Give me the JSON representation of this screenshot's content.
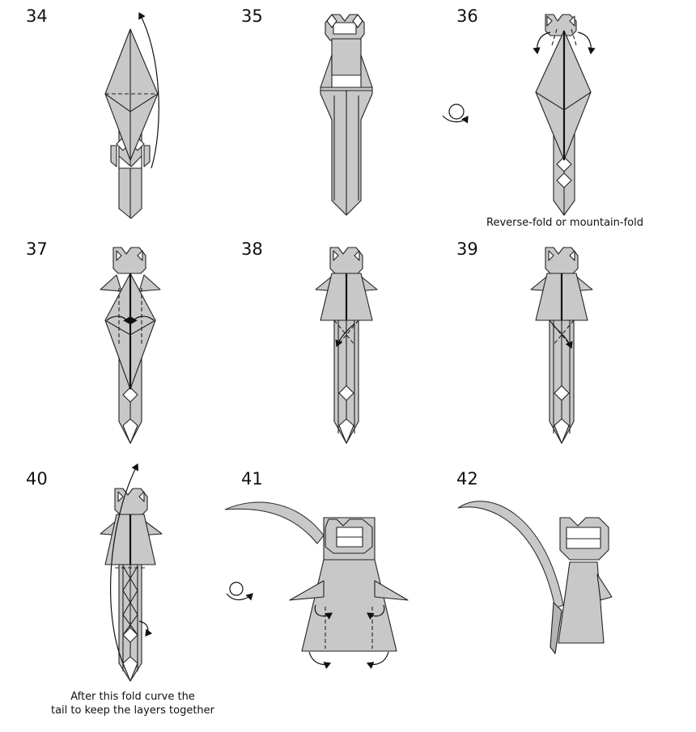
{
  "steps": [
    {
      "number": "34",
      "caption": ""
    },
    {
      "number": "35",
      "caption": ""
    },
    {
      "number": "36",
      "caption": "Reverse-fold or mountain-fold"
    },
    {
      "number": "37",
      "caption": ""
    },
    {
      "number": "38",
      "caption": ""
    },
    {
      "number": "39",
      "caption": ""
    },
    {
      "number": "40",
      "caption_line1": "After this fold curve the",
      "caption_line2": "tail to keep the layers together"
    },
    {
      "number": "41",
      "caption": ""
    },
    {
      "number": "42",
      "caption": ""
    }
  ],
  "colors": {
    "paper": "#c8c8c8",
    "paper_dark": "#b4b4b4",
    "line": "#222222",
    "background": "#ffffff"
  },
  "icons": [
    "fold-arrow-icon",
    "turn-over-icon",
    "valley-fold-line",
    "mountain-fold-line"
  ]
}
